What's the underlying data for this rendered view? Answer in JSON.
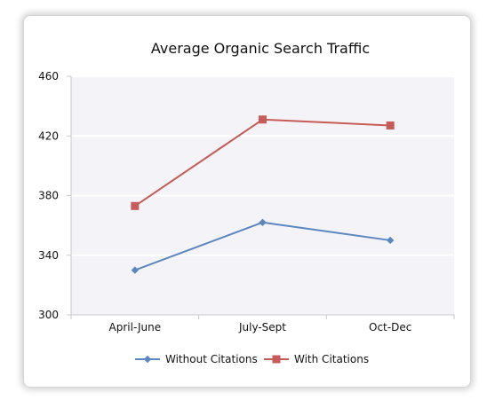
{
  "chart_data": {
    "type": "line",
    "title": "Average Organic Search Traffic",
    "xlabel": "",
    "ylabel": "",
    "categories": [
      "April-June",
      "July-Sept",
      "Oct-Dec"
    ],
    "ylim": [
      300,
      460
    ],
    "yticks": [
      300,
      340,
      380,
      420,
      460
    ],
    "grid": true,
    "legend_position": "bottom",
    "series": [
      {
        "name": "Without Citations",
        "values": [
          330,
          362,
          350
        ],
        "color": "#5b86c0",
        "marker": "diamond"
      },
      {
        "name": "With Citations",
        "values": [
          373,
          431,
          427
        ],
        "color": "#c65b57",
        "marker": "square"
      }
    ]
  }
}
